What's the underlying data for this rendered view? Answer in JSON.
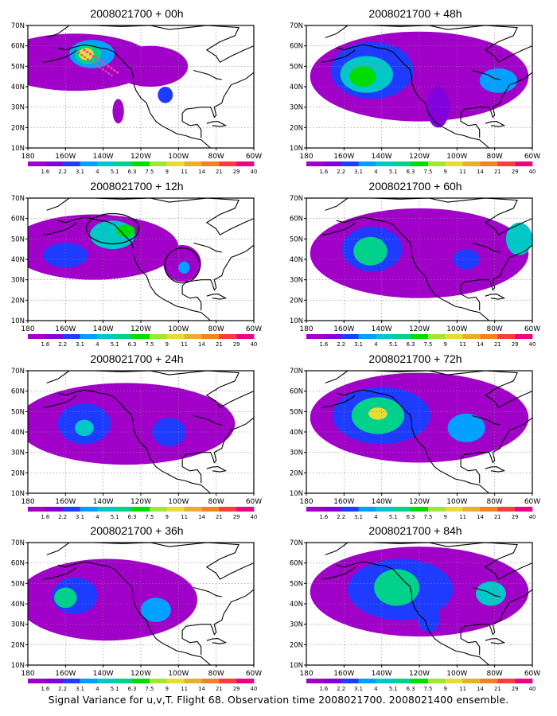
{
  "caption": "Signal Variance for u,v,T. Flight 68. Observation time 2008021700. 2008021400 ensemble.",
  "colors": {
    "levels": [
      "#a000c8",
      "#8200dc",
      "#1e3cff",
      "#00a0ff",
      "#00c8c8",
      "#00d28c",
      "#00dc00",
      "#a0e632",
      "#e6dc32",
      "#e6af2d",
      "#f08228",
      "#fa3c3c",
      "#f00082"
    ],
    "land_outline": "#000000",
    "grid": "#888888",
    "track": "#ff40a0"
  },
  "chart_data": [
    {
      "type": "heatmap",
      "title": "2008021700 + 00h",
      "x_ticks": [
        "180",
        "160W",
        "140W",
        "120W",
        "100W",
        "80W",
        "60W"
      ],
      "y_ticks": [
        "10N",
        "20N",
        "30N",
        "40N",
        "50N",
        "60N",
        "70N"
      ],
      "colorbar_labels": [
        "1.6",
        "2.2",
        "3.1",
        "4",
        "5.1",
        "6.3",
        "7.5",
        "9",
        "11",
        "14",
        "21",
        "29",
        "40"
      ],
      "xlim": [
        "180",
        "60W"
      ],
      "ylim": [
        "10N",
        "70N"
      ],
      "grid": true
    },
    {
      "type": "heatmap",
      "title": "2008021700 + 48h",
      "x_ticks": [
        "180",
        "160W",
        "140W",
        "120W",
        "100W",
        "80W",
        "60W"
      ],
      "y_ticks": [
        "10N",
        "20N",
        "30N",
        "40N",
        "50N",
        "60N",
        "70N"
      ],
      "colorbar_labels": [
        "1.6",
        "2.2",
        "3.1",
        "4",
        "5.1",
        "6.3",
        "7.5",
        "9",
        "11",
        "14",
        "21",
        "29",
        "40"
      ],
      "xlim": [
        "180",
        "60W"
      ],
      "ylim": [
        "10N",
        "70N"
      ],
      "grid": true
    },
    {
      "type": "heatmap",
      "title": "2008021700 + 12h",
      "x_ticks": [
        "180",
        "160W",
        "140W",
        "120W",
        "100W",
        "80W",
        "60W"
      ],
      "y_ticks": [
        "10N",
        "20N",
        "30N",
        "40N",
        "50N",
        "60N",
        "70N"
      ],
      "colorbar_labels": [
        "1.6",
        "2.2",
        "3.1",
        "4",
        "5.1",
        "6.3",
        "7.5",
        "9",
        "11",
        "14",
        "21",
        "29",
        "40"
      ],
      "xlim": [
        "180",
        "60W"
      ],
      "ylim": [
        "10N",
        "70N"
      ],
      "grid": true
    },
    {
      "type": "heatmap",
      "title": "2008021700 + 60h",
      "x_ticks": [
        "180",
        "160W",
        "140W",
        "120W",
        "100W",
        "80W",
        "60W"
      ],
      "y_ticks": [
        "10N",
        "20N",
        "30N",
        "40N",
        "50N",
        "60N",
        "70N"
      ],
      "colorbar_labels": [
        "1.6",
        "2.2",
        "3.1",
        "4",
        "5.1",
        "6.3",
        "7.5",
        "9",
        "11",
        "14",
        "21",
        "29",
        "40"
      ],
      "xlim": [
        "180",
        "60W"
      ],
      "ylim": [
        "10N",
        "70N"
      ],
      "grid": true
    },
    {
      "type": "heatmap",
      "title": "2008021700 + 24h",
      "x_ticks": [
        "180",
        "160W",
        "140W",
        "120W",
        "100W",
        "80W",
        "60W"
      ],
      "y_ticks": [
        "10N",
        "20N",
        "30N",
        "40N",
        "50N",
        "60N",
        "70N"
      ],
      "colorbar_labels": [
        "1.6",
        "2.2",
        "3.1",
        "4",
        "5.1",
        "6.3",
        "7.5",
        "9",
        "11",
        "14",
        "21",
        "29",
        "40"
      ],
      "xlim": [
        "180",
        "60W"
      ],
      "ylim": [
        "10N",
        "70N"
      ],
      "grid": true
    },
    {
      "type": "heatmap",
      "title": "2008021700 + 72h",
      "x_ticks": [
        "180",
        "160W",
        "140W",
        "120W",
        "100W",
        "80W",
        "60W"
      ],
      "y_ticks": [
        "10N",
        "20N",
        "30N",
        "40N",
        "50N",
        "60N",
        "70N"
      ],
      "colorbar_labels": [
        "1.6",
        "2.2",
        "3.1",
        "4",
        "5.1",
        "6.3",
        "7.5",
        "9",
        "11",
        "14",
        "21",
        "29",
        "40"
      ],
      "xlim": [
        "180",
        "60W"
      ],
      "ylim": [
        "10N",
        "70N"
      ],
      "grid": true
    },
    {
      "type": "heatmap",
      "title": "2008021700 + 36h",
      "x_ticks": [
        "180",
        "160W",
        "140W",
        "120W",
        "100W",
        "80W",
        "60W"
      ],
      "y_ticks": [
        "10N",
        "20N",
        "30N",
        "40N",
        "50N",
        "60N",
        "70N"
      ],
      "colorbar_labels": [
        "1.6",
        "2.2",
        "3.1",
        "4",
        "5.1",
        "6.3",
        "7.5",
        "9",
        "11",
        "14",
        "21",
        "29",
        "40"
      ],
      "xlim": [
        "180",
        "60W"
      ],
      "ylim": [
        "10N",
        "70N"
      ],
      "grid": true
    },
    {
      "type": "heatmap",
      "title": "2008021700 + 84h",
      "x_ticks": [
        "180",
        "160W",
        "140W",
        "120W",
        "100W",
        "80W",
        "60W"
      ],
      "y_ticks": [
        "10N",
        "20N",
        "30N",
        "40N",
        "50N",
        "60N",
        "70N"
      ],
      "colorbar_labels": [
        "1.6",
        "2.2",
        "3.1",
        "4",
        "5.1",
        "6.3",
        "7.5",
        "9",
        "11",
        "14",
        "21",
        "29",
        "40"
      ],
      "xlim": [
        "180",
        "60W"
      ],
      "ylim": [
        "10N",
        "70N"
      ],
      "grid": true
    }
  ]
}
